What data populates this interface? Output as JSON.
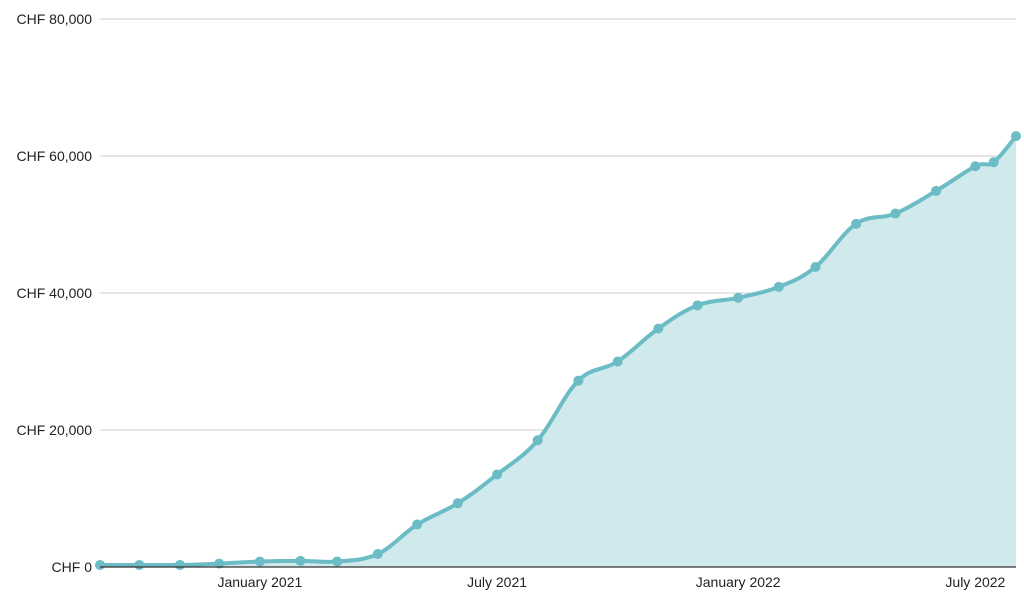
{
  "chart_data": {
    "type": "area",
    "title": "",
    "xlabel": "",
    "ylabel": "",
    "ylim": [
      0,
      80000
    ],
    "y_ticks": [
      {
        "value": 0,
        "label": "CHF 0"
      },
      {
        "value": 20000,
        "label": "CHF 20,000"
      },
      {
        "value": 40000,
        "label": "CHF 40,000"
      },
      {
        "value": 60000,
        "label": "CHF 60,000"
      },
      {
        "value": 80000,
        "label": "CHF 80,000"
      }
    ],
    "x_ticks": [
      {
        "value": "2021-01-01",
        "label": "January 2021"
      },
      {
        "value": "2021-07-01",
        "label": "July 2021"
      },
      {
        "value": "2022-01-01",
        "label": "January 2022"
      },
      {
        "value": "2022-07-01",
        "label": "July 2022"
      }
    ],
    "xlim": [
      "2020-09-01",
      "2022-08-01"
    ],
    "grid": true,
    "legend": "none",
    "colors": {
      "line": "#6bbcc5",
      "fill": "#cfe9ec",
      "grid": "#cccccc",
      "axis": "#333333"
    },
    "series": [
      {
        "points": [
          {
            "x": "2020-09-01",
            "y": 300
          },
          {
            "x": "2020-10-01",
            "y": 300
          },
          {
            "x": "2020-11-01",
            "y": 300
          },
          {
            "x": "2020-12-01",
            "y": 500
          },
          {
            "x": "2021-01-01",
            "y": 800
          },
          {
            "x": "2021-02-01",
            "y": 900
          },
          {
            "x": "2021-03-01",
            "y": 800
          },
          {
            "x": "2021-04-01",
            "y": 1900
          },
          {
            "x": "2021-05-01",
            "y": 6200
          },
          {
            "x": "2021-06-01",
            "y": 9300
          },
          {
            "x": "2021-07-01",
            "y": 13500
          },
          {
            "x": "2021-08-01",
            "y": 18500
          },
          {
            "x": "2021-09-01",
            "y": 27200
          },
          {
            "x": "2021-10-01",
            "y": 30000
          },
          {
            "x": "2021-11-01",
            "y": 34800
          },
          {
            "x": "2021-12-01",
            "y": 38200
          },
          {
            "x": "2022-01-01",
            "y": 39300
          },
          {
            "x": "2022-02-01",
            "y": 40900
          },
          {
            "x": "2022-03-01",
            "y": 43800
          },
          {
            "x": "2022-04-01",
            "y": 50100
          },
          {
            "x": "2022-05-01",
            "y": 51600
          },
          {
            "x": "2022-06-01",
            "y": 54900
          },
          {
            "x": "2022-07-01",
            "y": 58500
          },
          {
            "x": "2022-07-15",
            "y": 59100
          },
          {
            "x": "2022-08-01",
            "y": 62900
          }
        ]
      }
    ]
  }
}
